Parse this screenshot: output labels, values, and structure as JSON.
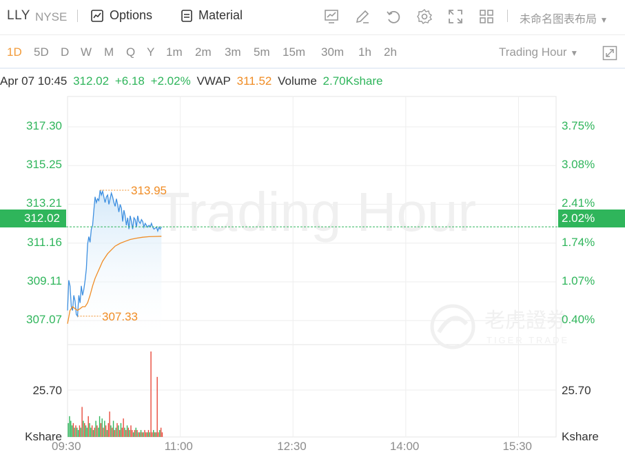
{
  "header": {
    "symbol": "LLY",
    "exchange": "NYSE",
    "options_label": "Options",
    "material_label": "Material",
    "layout_name": "未命名图表布局",
    "icons": [
      "chart-indicator-icon",
      "draw-pen-icon",
      "undo-icon",
      "settings-gear-icon",
      "fullscreen-icon",
      "grid-layout-icon"
    ]
  },
  "periods": {
    "items": [
      "1D",
      "5D",
      "D",
      "W",
      "M",
      "Q",
      "Y",
      "1m",
      "2m",
      "3m",
      "5m",
      "15m",
      "30m",
      "1h",
      "2h"
    ],
    "active": "1D",
    "session": "Trading Hour"
  },
  "info": {
    "datetime": "Apr 07 10:45",
    "price": "312.02",
    "change": "+6.18",
    "change_pct": "+2.02%",
    "vwap_label": "VWAP",
    "vwap": "311.52",
    "volume_label": "Volume",
    "volume": "2.70Kshare"
  },
  "watermark": {
    "text": "Trading Hour",
    "brand_cn": "老虎證券",
    "brand_en": "TIGER TRADE"
  },
  "colors": {
    "up": "#2fb55b",
    "price_line": "#3d8fe0",
    "vwap_line": "#f08c24",
    "down": "#e8493b"
  },
  "chart_data": {
    "type": "line",
    "x_ticks": [
      "09:30",
      "11:00",
      "12:30",
      "14:00",
      "15:30"
    ],
    "price_ticks": [
      "317.30",
      "315.25",
      "313.21",
      "311.16",
      "309.11",
      "307.07"
    ],
    "percent_ticks": [
      "3.75%",
      "3.08%",
      "2.41%",
      "1.74%",
      "1.07%",
      "0.40%"
    ],
    "ylim": [
      305.8,
      318.9
    ],
    "current_price": "312.02",
    "current_pct": "2.02%",
    "high_label": "313.95",
    "low_label": "307.33",
    "volume_tick": "25.70",
    "volume_unit": "Kshare",
    "session_minutes": 390,
    "price_series": [
      [
        0,
        307.6
      ],
      [
        1,
        309.2
      ],
      [
        2,
        308.9
      ],
      [
        3,
        307.8
      ],
      [
        4,
        307.6
      ],
      [
        5,
        308.4
      ],
      [
        6,
        308.1
      ],
      [
        7,
        307.4
      ],
      [
        8,
        307.3
      ],
      [
        9,
        308.4
      ],
      [
        10,
        308.0
      ],
      [
        11,
        308.9
      ],
      [
        12,
        308.4
      ],
      [
        13,
        308.7
      ],
      [
        14,
        309.2
      ],
      [
        15,
        309.8
      ],
      [
        16,
        311.1
      ],
      [
        17,
        311.5
      ],
      [
        18,
        311.2
      ],
      [
        19,
        311.9
      ],
      [
        20,
        312.1
      ],
      [
        21,
        312.9
      ],
      [
        22,
        313.6
      ],
      [
        23,
        313.3
      ],
      [
        24,
        313.5
      ],
      [
        25,
        313.4
      ],
      [
        26,
        313.95
      ],
      [
        27,
        313.7
      ],
      [
        28,
        313.9
      ],
      [
        29,
        313.6
      ],
      [
        30,
        313.3
      ],
      [
        31,
        313.6
      ],
      [
        32,
        313.7
      ],
      [
        33,
        313.2
      ],
      [
        34,
        313.5
      ],
      [
        35,
        313.8
      ],
      [
        36,
        313.6
      ],
      [
        37,
        313.3
      ],
      [
        38,
        313.1
      ],
      [
        39,
        313.5
      ],
      [
        40,
        313.2
      ],
      [
        41,
        312.8
      ],
      [
        42,
        313.2
      ],
      [
        43,
        313.0
      ],
      [
        44,
        312.3
      ],
      [
        45,
        312.9
      ],
      [
        46,
        312.6
      ],
      [
        47,
        312.1
      ],
      [
        48,
        312.5
      ],
      [
        49,
        311.9
      ],
      [
        50,
        312.6
      ],
      [
        51,
        312.3
      ],
      [
        52,
        311.9
      ],
      [
        53,
        312.5
      ],
      [
        54,
        312.4
      ],
      [
        55,
        312.0
      ],
      [
        56,
        312.6
      ],
      [
        57,
        312.3
      ],
      [
        58,
        312.2
      ],
      [
        59,
        312.4
      ],
      [
        60,
        312.3
      ],
      [
        61,
        312.0
      ],
      [
        62,
        312.2
      ],
      [
        63,
        312.1
      ],
      [
        64,
        312.0
      ],
      [
        65,
        312.1
      ],
      [
        66,
        312.02
      ],
      [
        67,
        312.2
      ],
      [
        68,
        312.0
      ],
      [
        69,
        311.9
      ],
      [
        70,
        311.95
      ],
      [
        71,
        312.0
      ],
      [
        72,
        311.8
      ],
      [
        73,
        312.0
      ],
      [
        74,
        311.9
      ],
      [
        75,
        312.02
      ]
    ],
    "vwap_series": [
      [
        0,
        306.9
      ],
      [
        2,
        307.6
      ],
      [
        4,
        307.8
      ],
      [
        6,
        307.7
      ],
      [
        8,
        307.6
      ],
      [
        10,
        307.7
      ],
      [
        12,
        307.8
      ],
      [
        14,
        307.8
      ],
      [
        16,
        308.0
      ],
      [
        18,
        308.4
      ],
      [
        20,
        308.9
      ],
      [
        22,
        309.3
      ],
      [
        24,
        309.6
      ],
      [
        26,
        309.9
      ],
      [
        28,
        310.2
      ],
      [
        30,
        310.4
      ],
      [
        32,
        310.6
      ],
      [
        35,
        310.8
      ],
      [
        38,
        311.0
      ],
      [
        42,
        311.15
      ],
      [
        46,
        311.25
      ],
      [
        50,
        311.35
      ],
      [
        55,
        311.42
      ],
      [
        60,
        311.47
      ],
      [
        65,
        311.5
      ],
      [
        70,
        311.51
      ],
      [
        75,
        311.52
      ]
    ],
    "volume_series": [
      [
        0,
        6,
        1
      ],
      [
        1,
        9,
        1
      ],
      [
        2,
        7,
        1
      ],
      [
        3,
        5,
        1
      ],
      [
        4,
        6,
        0
      ],
      [
        5,
        4,
        1
      ],
      [
        6,
        5,
        0
      ],
      [
        7,
        4,
        1
      ],
      [
        8,
        3,
        1
      ],
      [
        9,
        5,
        0
      ],
      [
        10,
        4,
        1
      ],
      [
        11,
        13,
        0
      ],
      [
        12,
        7,
        1
      ],
      [
        13,
        6,
        0
      ],
      [
        14,
        5,
        1
      ],
      [
        15,
        4,
        1
      ],
      [
        16,
        9,
        0
      ],
      [
        17,
        6,
        1
      ],
      [
        18,
        4,
        1
      ],
      [
        19,
        5,
        0
      ],
      [
        20,
        3,
        1
      ],
      [
        21,
        4,
        0
      ],
      [
        22,
        7,
        1
      ],
      [
        23,
        5,
        0
      ],
      [
        24,
        4,
        1
      ],
      [
        25,
        9,
        1
      ],
      [
        26,
        6,
        0
      ],
      [
        27,
        8,
        1
      ],
      [
        28,
        4,
        0
      ],
      [
        29,
        7,
        1
      ],
      [
        30,
        5,
        0
      ],
      [
        31,
        3,
        1
      ],
      [
        32,
        6,
        0
      ],
      [
        33,
        11,
        0
      ],
      [
        34,
        5,
        1
      ],
      [
        35,
        4,
        0
      ],
      [
        36,
        7,
        1
      ],
      [
        37,
        3,
        0
      ],
      [
        38,
        4,
        1
      ],
      [
        39,
        6,
        0
      ],
      [
        40,
        5,
        1
      ],
      [
        41,
        3,
        0
      ],
      [
        42,
        6,
        1
      ],
      [
        43,
        4,
        0
      ],
      [
        44,
        8,
        0
      ],
      [
        45,
        4,
        1
      ],
      [
        46,
        3,
        0
      ],
      [
        47,
        5,
        1
      ],
      [
        48,
        4,
        0
      ],
      [
        49,
        3,
        1
      ],
      [
        50,
        5,
        0
      ],
      [
        51,
        3,
        0
      ],
      [
        52,
        2,
        1
      ],
      [
        53,
        3,
        0
      ],
      [
        54,
        4,
        1
      ],
      [
        55,
        3,
        0
      ],
      [
        56,
        2,
        1
      ],
      [
        57,
        2,
        0
      ],
      [
        58,
        3,
        1
      ],
      [
        59,
        2,
        0
      ],
      [
        60,
        2,
        1
      ],
      [
        61,
        3,
        0
      ],
      [
        62,
        2,
        0
      ],
      [
        63,
        2,
        1
      ],
      [
        64,
        3,
        0
      ],
      [
        65,
        2,
        1
      ],
      [
        66,
        37,
        0
      ],
      [
        67,
        2,
        0
      ],
      [
        68,
        3,
        1
      ],
      [
        69,
        2,
        0
      ],
      [
        70,
        2,
        1
      ],
      [
        71,
        26,
        0
      ],
      [
        72,
        2,
        0
      ],
      [
        73,
        3,
        1
      ],
      [
        74,
        4,
        0
      ],
      [
        75,
        2,
        0
      ]
    ],
    "volume_max": 37
  }
}
